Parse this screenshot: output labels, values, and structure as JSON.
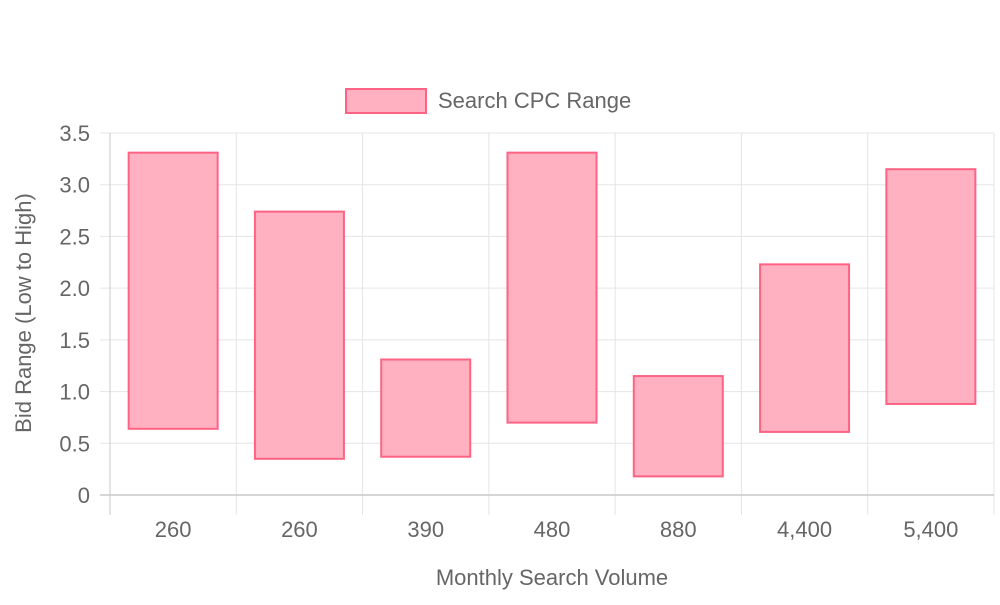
{
  "chart_data": {
    "type": "bar",
    "subtype": "floating-range",
    "categories": [
      "260",
      "260",
      "390",
      "480",
      "880",
      "4,400",
      "5,400"
    ],
    "series": [
      {
        "name": "Search CPC Range",
        "ranges": [
          [
            0.64,
            3.31
          ],
          [
            0.35,
            2.74
          ],
          [
            0.37,
            1.31
          ],
          [
            0.7,
            3.31
          ],
          [
            0.18,
            1.15
          ],
          [
            0.61,
            2.23
          ],
          [
            0.88,
            3.15
          ]
        ]
      }
    ],
    "xlabel": "Monthly Search Volume",
    "ylabel": "Bid Range (Low to High)",
    "ylim": [
      0,
      3.5
    ],
    "yticks": [
      "0",
      "0.5",
      "1.0",
      "1.5",
      "2.0",
      "2.5",
      "3.0",
      "3.5"
    ],
    "grid": true,
    "legend_position": "top-center",
    "colors": {
      "bar_fill": "#ffb1c1",
      "bar_stroke": "#ff6384",
      "grid": "#e5e5e5",
      "axis": "#c8c8c8",
      "text": "#666666"
    }
  }
}
